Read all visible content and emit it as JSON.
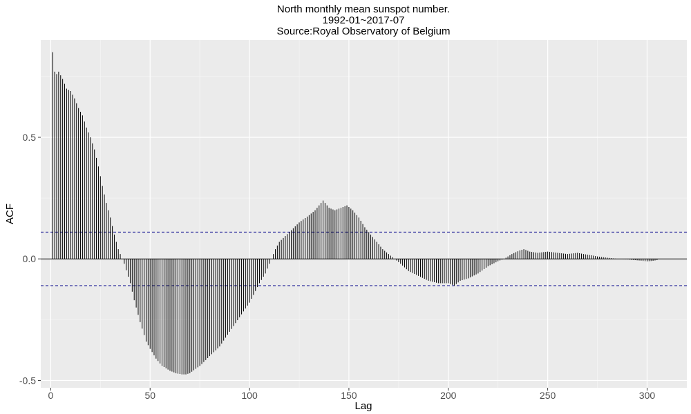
{
  "chart_data": {
    "type": "bar",
    "title": [
      "North monthly mean sunspot number.",
      "1992-01~2017-07",
      "Source:Royal Observatory of Belgium"
    ],
    "xlabel": "Lag",
    "ylabel": "ACF",
    "xlim": [
      -5,
      320
    ],
    "ylim": [
      -0.53,
      0.9
    ],
    "x_ticks": [
      0,
      50,
      100,
      150,
      200,
      250,
      300
    ],
    "x_tick_labels": [
      "0",
      "50",
      "100",
      "150",
      "200",
      "250",
      "300"
    ],
    "y_ticks": [
      -0.5,
      0.0,
      0.5
    ],
    "y_tick_labels": [
      "-0.5",
      "0.0",
      "0.5"
    ],
    "confidence_band": 0.11,
    "lag_start": 1,
    "lag_end": 305,
    "anchors": [
      [
        1,
        0.85
      ],
      [
        2,
        0.77
      ],
      [
        3,
        0.76
      ],
      [
        4,
        0.77
      ],
      [
        6,
        0.74
      ],
      [
        8,
        0.7
      ],
      [
        10,
        0.69
      ],
      [
        12,
        0.66
      ],
      [
        14,
        0.62
      ],
      [
        16,
        0.59
      ],
      [
        18,
        0.54
      ],
      [
        20,
        0.5
      ],
      [
        22,
        0.45
      ],
      [
        24,
        0.38
      ],
      [
        26,
        0.3
      ],
      [
        28,
        0.23
      ],
      [
        30,
        0.17
      ],
      [
        32,
        0.1
      ],
      [
        34,
        0.04
      ],
      [
        36,
        0.0
      ],
      [
        37,
        -0.02
      ],
      [
        40,
        -0.1
      ],
      [
        42,
        -0.17
      ],
      [
        45,
        -0.26
      ],
      [
        48,
        -0.34
      ],
      [
        50,
        -0.37
      ],
      [
        53,
        -0.41
      ],
      [
        56,
        -0.44
      ],
      [
        60,
        -0.46
      ],
      [
        63,
        -0.47
      ],
      [
        66,
        -0.475
      ],
      [
        68,
        -0.475
      ],
      [
        70,
        -0.47
      ],
      [
        75,
        -0.44
      ],
      [
        80,
        -0.4
      ],
      [
        85,
        -0.36
      ],
      [
        90,
        -0.3
      ],
      [
        95,
        -0.24
      ],
      [
        100,
        -0.18
      ],
      [
        105,
        -0.1
      ],
      [
        108,
        -0.06
      ],
      [
        110,
        -0.02
      ],
      [
        111,
        0.0
      ],
      [
        113,
        0.04
      ],
      [
        115,
        0.07
      ],
      [
        120,
        0.11
      ],
      [
        125,
        0.15
      ],
      [
        130,
        0.18
      ],
      [
        133,
        0.2
      ],
      [
        135,
        0.22
      ],
      [
        137,
        0.24
      ],
      [
        140,
        0.21
      ],
      [
        143,
        0.2
      ],
      [
        146,
        0.21
      ],
      [
        149,
        0.22
      ],
      [
        152,
        0.2
      ],
      [
        155,
        0.17
      ],
      [
        158,
        0.13
      ],
      [
        161,
        0.1
      ],
      [
        164,
        0.07
      ],
      [
        167,
        0.04
      ],
      [
        170,
        0.02
      ],
      [
        173,
        0.0
      ],
      [
        176,
        -0.02
      ],
      [
        180,
        -0.05
      ],
      [
        185,
        -0.07
      ],
      [
        190,
        -0.09
      ],
      [
        195,
        -0.1
      ],
      [
        200,
        -0.1
      ],
      [
        203,
        -0.11
      ],
      [
        206,
        -0.09
      ],
      [
        210,
        -0.08
      ],
      [
        215,
        -0.06
      ],
      [
        220,
        -0.03
      ],
      [
        225,
        -0.01
      ],
      [
        228,
        0.0
      ],
      [
        232,
        0.02
      ],
      [
        236,
        0.035
      ],
      [
        238,
        0.04
      ],
      [
        241,
        0.03
      ],
      [
        245,
        0.025
      ],
      [
        250,
        0.03
      ],
      [
        255,
        0.025
      ],
      [
        260,
        0.02
      ],
      [
        265,
        0.025
      ],
      [
        268,
        0.02
      ],
      [
        272,
        0.015
      ],
      [
        275,
        0.01
      ],
      [
        280,
        0.005
      ],
      [
        285,
        0.0
      ],
      [
        290,
        -0.002
      ],
      [
        295,
        -0.006
      ],
      [
        300,
        -0.01
      ],
      [
        303,
        -0.008
      ],
      [
        305,
        -0.005
      ]
    ]
  }
}
